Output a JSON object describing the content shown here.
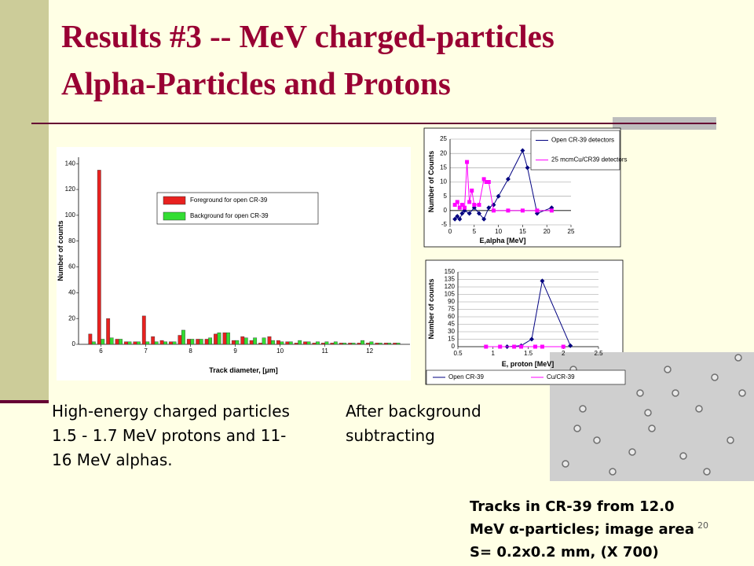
{
  "slide": {
    "title_lines": [
      "Results #3 -- MeV charged-particles",
      "Alpha-Particles and Protons"
    ],
    "left_text": [
      "High-energy charged particles",
      "1.5 - 1.7 MeV protons and 11-",
      "16 MeV alphas."
    ],
    "middle_text": [
      "After background",
      "subtracting"
    ],
    "caption": [
      "Tracks in CR-39 from 12.0",
      "MeV α-particles; image area",
      "S= 0.2x0.2 mm, (X 700)"
    ],
    "page_number": "20"
  },
  "chart_data": [
    {
      "type": "bar",
      "x_label": "Track diameter, [μm]",
      "y_label": "Number of counts",
      "x": [
        5.8,
        6.0,
        6.2,
        6.4,
        6.6,
        6.8,
        7.0,
        7.2,
        7.4,
        7.6,
        7.8,
        8.0,
        8.2,
        8.4,
        8.6,
        8.8,
        9.0,
        9.2,
        9.4,
        9.6,
        9.8,
        10.0,
        10.2,
        10.4,
        10.6,
        10.8,
        11.0,
        11.2,
        11.4,
        11.6,
        11.8,
        12.0,
        12.2,
        12.4,
        12.6
      ],
      "series": [
        {
          "name": "Foreground for open CR-39",
          "color": "#e8211f",
          "values": [
            8,
            135,
            20,
            4,
            2,
            2,
            22,
            6,
            3,
            2,
            7,
            4,
            4,
            4,
            8,
            9,
            3,
            6,
            3,
            1,
            6,
            3,
            2,
            1,
            2,
            1,
            1,
            1,
            1,
            1,
            1,
            1,
            1,
            1,
            1
          ]
        },
        {
          "name": "Background for open CR-39",
          "color": "#33dd33",
          "values": [
            2,
            4,
            5,
            4,
            2,
            2,
            2,
            2,
            2,
            2,
            11,
            4,
            4,
            5,
            9,
            9,
            3,
            5,
            5,
            5,
            3,
            2,
            2,
            3,
            2,
            2,
            2,
            2,
            1,
            1,
            3,
            2,
            1,
            1,
            1
          ]
        }
      ],
      "xlim": [
        5.5,
        12.9
      ],
      "xticks": [
        6,
        7,
        8,
        9,
        10,
        11,
        12
      ],
      "ylim": [
        0,
        145
      ],
      "yticks": [
        0,
        20,
        40,
        60,
        80,
        100,
        120,
        140
      ],
      "grid": false,
      "legend": "top"
    },
    {
      "type": "line",
      "x_label": "E,alpha [MeV]",
      "y_label": "Number of Counts",
      "series": [
        {
          "name": "Open CR-39 detectors",
          "color": "#000080",
          "marker": "diamond",
          "x": [
            1,
            1.5,
            2,
            2.5,
            3,
            4,
            5,
            6,
            7,
            8,
            9,
            10,
            12,
            15,
            16,
            18,
            21
          ],
          "values": [
            -3,
            -2,
            -3,
            -1,
            0,
            -1,
            1,
            -1,
            -3,
            1,
            2,
            5,
            11,
            21,
            15,
            -1,
            1
          ]
        },
        {
          "name": "25 mcmCu/CR39 detectors",
          "color": "#ff00ff",
          "marker": "square",
          "x": [
            1,
            1.5,
            2,
            2.5,
            3,
            3.5,
            4,
            4.5,
            5,
            6,
            7,
            7.5,
            8,
            9,
            12,
            15,
            18,
            21
          ],
          "values": [
            2,
            3,
            1,
            2,
            1,
            17,
            3,
            7,
            2,
            2,
            11,
            10,
            10,
            0,
            0,
            0,
            0,
            0
          ]
        }
      ],
      "xlim": [
        0,
        25
      ],
      "xticks": [
        0,
        5,
        10,
        15,
        20,
        25
      ],
      "ylim": [
        -5,
        25
      ],
      "yticks": [
        -5,
        0,
        5,
        10,
        15,
        20,
        25
      ],
      "grid": true,
      "legend": "top-right"
    },
    {
      "type": "line",
      "x_label": "E, proton [MeV]",
      "y_label": "Number of counts",
      "series": [
        {
          "name": "Open CR-39",
          "color": "#000080",
          "marker": "diamond",
          "x": [
            1.2,
            1.4,
            1.55,
            1.7,
            2.1
          ],
          "values": [
            0,
            2,
            15,
            132,
            2
          ]
        },
        {
          "name": "Cu/CR-39",
          "color": "#ff00ff",
          "marker": "square",
          "x": [
            0.9,
            1.1,
            1.3,
            1.4,
            1.6,
            1.7,
            2.0
          ],
          "values": [
            0,
            0,
            0,
            0,
            0,
            0,
            0
          ]
        }
      ],
      "xlim": [
        0.5,
        2.5
      ],
      "xticks": [
        0.5,
        1,
        1.5,
        2,
        2.5
      ],
      "ylim": [
        0,
        150
      ],
      "yticks": [
        0,
        15,
        30,
        45,
        60,
        75,
        90,
        105,
        120,
        135,
        150
      ],
      "grid": true,
      "legend": "bottom"
    }
  ]
}
